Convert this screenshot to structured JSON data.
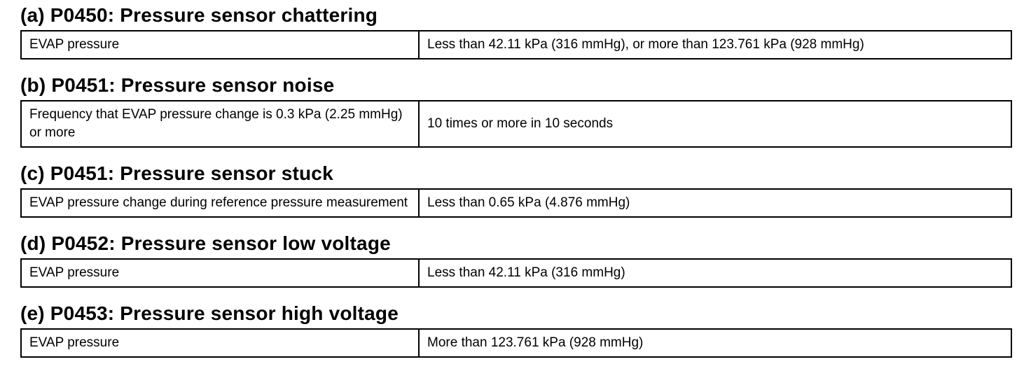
{
  "sections": [
    {
      "heading": "(a) P0450: Pressure sensor chattering",
      "rows": [
        [
          "EVAP pressure",
          "Less than 42.11 kPa (316 mmHg), or more than 123.761 kPa (928 mmHg)"
        ]
      ]
    },
    {
      "heading": "(b) P0451: Pressure sensor noise",
      "rows": [
        [
          "Frequency that EVAP pressure change is 0.3 kPa (2.25 mmHg) or more",
          "10 times or more in 10 seconds"
        ]
      ]
    },
    {
      "heading": "(c) P0451: Pressure sensor stuck",
      "rows": [
        [
          "EVAP pressure change during reference pressure measurement",
          "Less than 0.65 kPa (4.876 mmHg)"
        ]
      ]
    },
    {
      "heading": "(d) P0452: Pressure sensor low voltage",
      "rows": [
        [
          "EVAP pressure",
          "Less than 42.11 kPa (316 mmHg)"
        ]
      ]
    },
    {
      "heading": "(e) P0453: Pressure sensor high voltage",
      "rows": [
        [
          "EVAP pressure",
          "More than 123.761 kPa (928 mmHg)"
        ]
      ]
    }
  ]
}
